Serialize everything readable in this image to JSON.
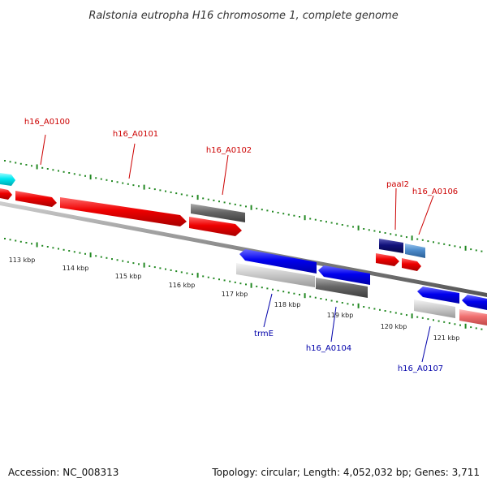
{
  "title": "Ralstonia eutropha H16 chromosome 1, complete genome",
  "footer": {
    "accession": "Accession: NC_008313",
    "topology": "Topology: circular; Length: 4,052,032 bp; Genes: 3,711"
  },
  "colors": {
    "forward_gene": "#ff0000",
    "reverse_gene": "#0000ff",
    "forward_label": "#cc0000",
    "reverse_label": "#0000aa",
    "tick": "#228822",
    "backbone": "#888888"
  },
  "kbp_labels": [
    "113 kbp",
    "114 kbp",
    "115 kbp",
    "116 kbp",
    "117 kbp",
    "118 kbp",
    "119 kbp",
    "120 kbp",
    "121 kbp"
  ],
  "gene_labels_forward": [
    "h16_A0100",
    "h16_A0101",
    "h16_A0102",
    "paaI2",
    "h16_A0106"
  ],
  "gene_labels_reverse": [
    "trmE",
    "h16_A0104",
    "h16_A0107"
  ]
}
